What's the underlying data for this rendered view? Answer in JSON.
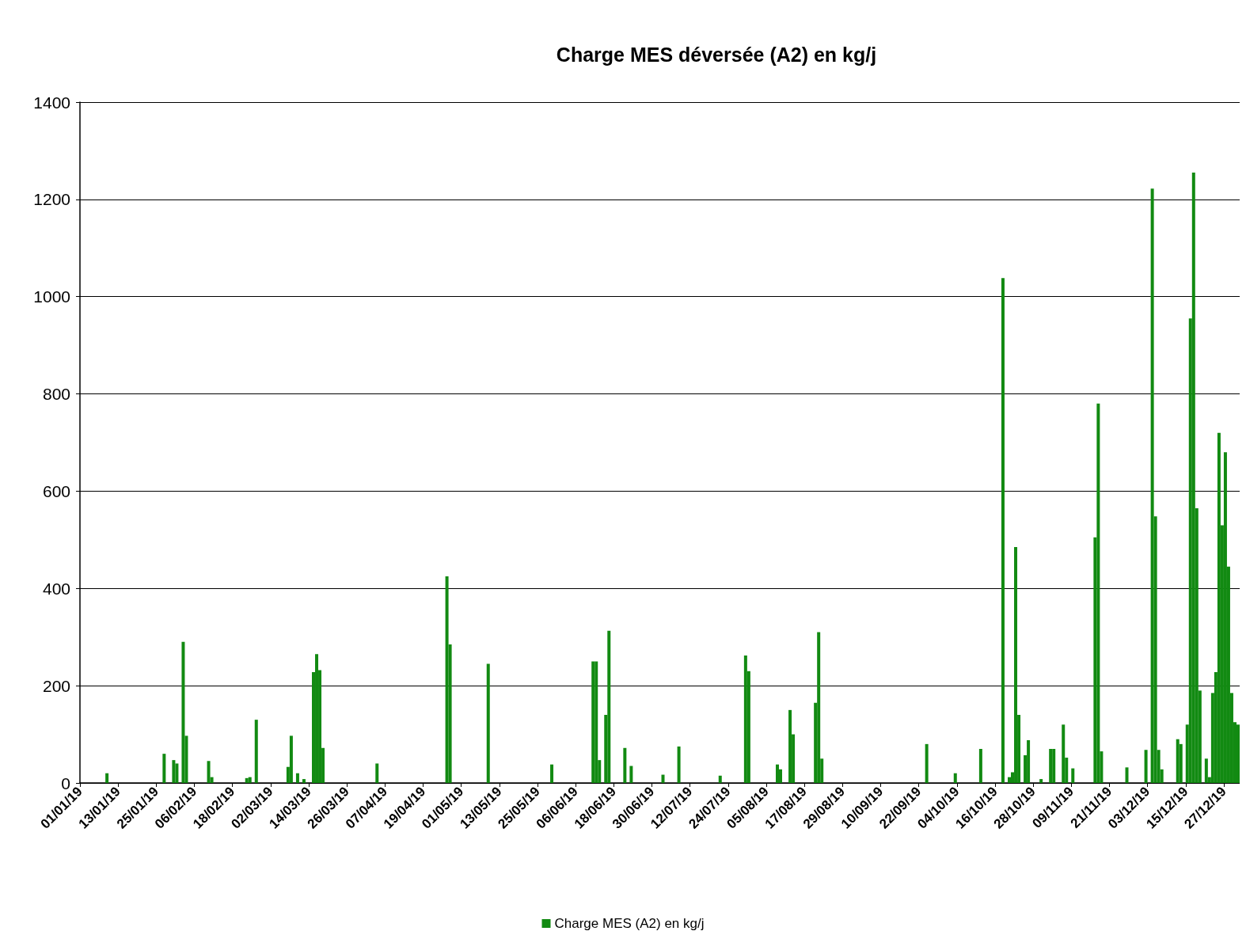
{
  "chart_data": {
    "type": "bar",
    "title": "Charge MES déversée (A2) en kg/j",
    "x": [
      "--01-09",
      "--01-27",
      "--01-30",
      "--01-31",
      "--02-02",
      "--02-03",
      "--02-10",
      "--02-11",
      "--02-22",
      "--02-23",
      "--02-25",
      "--03-07",
      "--03-08",
      "--03-10",
      "--03-12",
      "--03-15",
      "--03-16",
      "--03-17",
      "--03-18",
      "--04-04",
      "--04-26",
      "--04-27",
      "--05-09",
      "--05-29",
      "--06-11",
      "--06-12",
      "--06-13",
      "--06-15",
      "--06-16",
      "--06-21",
      "--06-23",
      "--07-03",
      "--07-08",
      "--07-21",
      "--07-29",
      "--07-30",
      "--08-08",
      "--08-09",
      "--08-12",
      "--08-13",
      "--08-20",
      "--08-21",
      "--08-22",
      "--09-24",
      "--10-03",
      "--10-11",
      "--10-18",
      "--10-20",
      "--10-21",
      "--10-22",
      "--10-23",
      "--10-25",
      "--10-26",
      "--10-30",
      "--11-02",
      "--11-03",
      "--11-06",
      "--11-07",
      "--11-09",
      "--11-16",
      "--11-17",
      "--11-18",
      "--11-26",
      "--12-02",
      "--12-04",
      "--12-05",
      "--12-06",
      "--12-07",
      "--12-12",
      "--12-13",
      "--12-15",
      "--12-16",
      "--12-17",
      "--12-18",
      "--12-19",
      "--12-21",
      "--12-22",
      "--12-23",
      "--12-24",
      "--12-25",
      "--12-26",
      "--12-27",
      "--12-28",
      "--12-29",
      "--12-30",
      "--12-31"
    ],
    "series": [
      {
        "name": "Charge MES (A2) en kg/j",
        "color": "#128a12",
        "values": [
          20,
          60,
          47,
          40,
          290,
          97,
          45,
          12,
          10,
          12,
          130,
          33,
          97,
          20,
          8,
          228,
          265,
          232,
          72,
          40,
          425,
          285,
          245,
          38,
          250,
          250,
          47,
          140,
          313,
          72,
          35,
          17,
          75,
          15,
          262,
          230,
          38,
          28,
          150,
          100,
          165,
          310,
          50,
          80,
          20,
          70,
          1038,
          12,
          22,
          485,
          140,
          57,
          88,
          8,
          70,
          70,
          120,
          52,
          30,
          505,
          780,
          65,
          32,
          68,
          1222,
          548,
          68,
          28,
          90,
          80,
          120,
          955,
          1255,
          565,
          190,
          50,
          12,
          185,
          228,
          720,
          530,
          680,
          445,
          185,
          125,
          120
        ]
      }
    ],
    "xlim": [
      "--01-01",
      "--12-31"
    ],
    "xticks": [
      {
        "value": "--01-01",
        "label": "01/01/19"
      },
      {
        "value": "--01-13",
        "label": "13/01/19"
      },
      {
        "value": "--01-25",
        "label": "25/01/19"
      },
      {
        "value": "--02-06",
        "label": "06/02/19"
      },
      {
        "value": "--02-18",
        "label": "18/02/19"
      },
      {
        "value": "--03-02",
        "label": "02/03/19"
      },
      {
        "value": "--03-14",
        "label": "14/03/19"
      },
      {
        "value": "--03-26",
        "label": "26/03/19"
      },
      {
        "value": "--04-07",
        "label": "07/04/19"
      },
      {
        "value": "--04-19",
        "label": "19/04/19"
      },
      {
        "value": "--05-01",
        "label": "01/05/19"
      },
      {
        "value": "--05-13",
        "label": "13/05/19"
      },
      {
        "value": "--05-25",
        "label": "25/05/19"
      },
      {
        "value": "--06-06",
        "label": "06/06/19"
      },
      {
        "value": "--06-18",
        "label": "18/06/19"
      },
      {
        "value": "--06-30",
        "label": "30/06/19"
      },
      {
        "value": "--07-12",
        "label": "12/07/19"
      },
      {
        "value": "--07-24",
        "label": "24/07/19"
      },
      {
        "value": "--08-05",
        "label": "05/08/19"
      },
      {
        "value": "--08-17",
        "label": "17/08/19"
      },
      {
        "value": "--08-29",
        "label": "29/08/19"
      },
      {
        "value": "--09-10",
        "label": "10/09/19"
      },
      {
        "value": "--09-22",
        "label": "22/09/19"
      },
      {
        "value": "--10-04",
        "label": "04/10/19"
      },
      {
        "value": "--10-16",
        "label": "16/10/19"
      },
      {
        "value": "--10-28",
        "label": "28/10/19"
      },
      {
        "value": "--11-09",
        "label": "09/11/19"
      },
      {
        "value": "--11-21",
        "label": "21/11/19"
      },
      {
        "value": "--12-03",
        "label": "03/12/19"
      },
      {
        "value": "--12-15",
        "label": "15/12/19"
      },
      {
        "value": "--12-27",
        "label": "27/12/19"
      }
    ],
    "ylim": [
      0,
      1400
    ],
    "yticks": [
      0,
      200,
      400,
      600,
      800,
      1000,
      1200,
      1400
    ],
    "grid": "y",
    "legend": "bottom"
  }
}
